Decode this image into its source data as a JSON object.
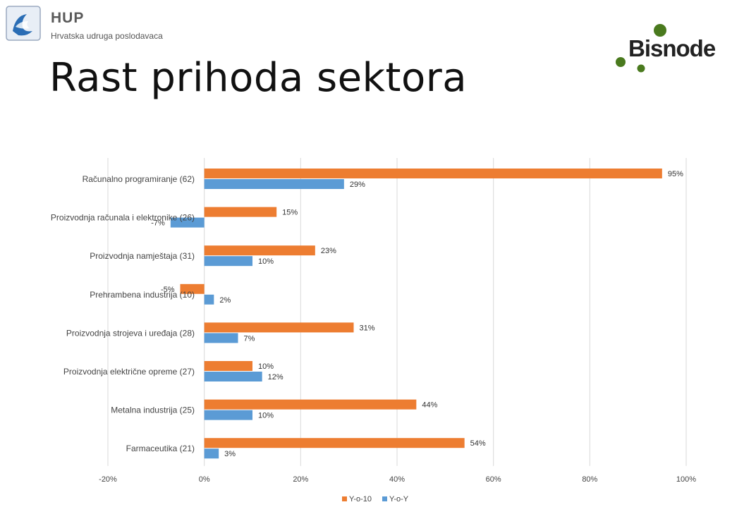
{
  "header": {
    "org_name": "HUP",
    "org_subtitle": "Hrvatska udruga poslodavaca",
    "partner_name": "Bisnode",
    "title": "Rast prihoda sektora"
  },
  "colors": {
    "series1": "#ED7D31",
    "series2": "#5B9BD5",
    "grid": "#d9d9d9",
    "bisnode_dot": "#4a7a1e",
    "hup_blue": "#2a6db5"
  },
  "chart_data": {
    "type": "bar",
    "orientation": "horizontal",
    "categories": [
      "Računalno programiranje (62)",
      "Proizvodnja računala i elektronike (26)",
      "Proizvodnja namještaja (31)",
      "Prehrambena industrija (10)",
      "Proizvodnja strojeva i uređaja (28)",
      "Proizvodnja električne opreme (27)",
      "Metalna industrija (25)",
      "Farmaceutika (21)"
    ],
    "series": [
      {
        "name": "Y-o-10",
        "values": [
          95,
          15,
          23,
          -5,
          31,
          10,
          44,
          54
        ],
        "labels": [
          "95%",
          "15%",
          "23%",
          "-5%",
          "31%",
          "10%",
          "44%",
          "54%"
        ]
      },
      {
        "name": "Y-o-Y",
        "values": [
          29,
          -7,
          10,
          2,
          7,
          12,
          10,
          3
        ],
        "labels": [
          "29%",
          "-7%",
          "10%",
          "2%",
          "7%",
          "12%",
          "10%",
          "3%"
        ]
      }
    ],
    "xlim": [
      -20,
      100
    ],
    "ticks": [
      -20,
      0,
      20,
      40,
      60,
      80,
      100
    ],
    "tick_labels": [
      "-20%",
      "0%",
      "20%",
      "40%",
      "60%",
      "80%",
      "100%"
    ],
    "grid": true,
    "legend": "bottom"
  }
}
